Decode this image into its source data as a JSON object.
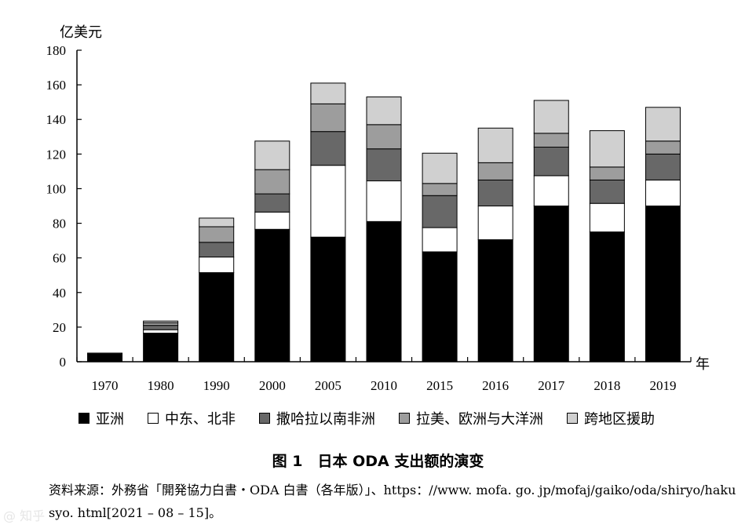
{
  "chart_data": {
    "type": "bar",
    "stacked": true,
    "ylabel": "亿美元",
    "xlabel": "年",
    "ylim": [
      0,
      180
    ],
    "yticks": [
      0,
      20,
      40,
      60,
      80,
      100,
      120,
      140,
      160,
      180
    ],
    "categories": [
      "1970",
      "1980",
      "1990",
      "2000",
      "2005",
      "2010",
      "2015",
      "2016",
      "2017",
      "2018",
      "2019"
    ],
    "series": [
      {
        "name": "亚洲",
        "color": "#000000",
        "values": [
          4.5,
          16.5,
          51.5,
          76.5,
          72,
          81,
          63.5,
          70.5,
          90,
          75,
          90
        ]
      },
      {
        "name": "中东、北非",
        "color": "#ffffff",
        "values": [
          0,
          2,
          9,
          10,
          41.5,
          23.5,
          14,
          19.5,
          17.5,
          16.5,
          15
        ]
      },
      {
        "name": "撒哈拉以南非洲",
        "color": "#686868",
        "values": [
          0.5,
          2.5,
          8.5,
          10.5,
          19.5,
          18.5,
          18.5,
          15,
          16.5,
          13.5,
          15
        ]
      },
      {
        "name": "拉美、欧洲与大洋洲",
        "color": "#9d9d9d",
        "values": [
          0,
          1.5,
          9,
          14,
          16,
          14,
          7,
          10,
          8,
          7.5,
          7.5
        ]
      },
      {
        "name": "跨地区援助",
        "color": "#d0d0d0",
        "values": [
          0,
          1,
          5,
          16.5,
          12,
          16,
          17.5,
          20,
          19,
          21,
          19.5
        ]
      }
    ]
  },
  "caption": "图 1　日本 ODA 支出额的演变",
  "source": "资料来源：外務省「開発協力白書・ODA 白書（各年版）」、https：//www. mofa. go. jp/mofaj/gaiko/oda/shiryo/hakusyo. html[2021 – 08 – 15]。",
  "watermark": "@ 知乎"
}
